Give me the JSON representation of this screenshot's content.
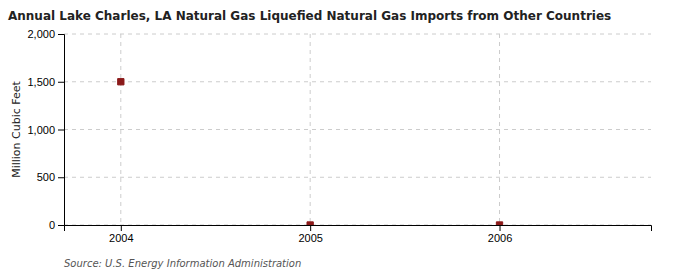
{
  "chart_data": {
    "type": "scatter",
    "title": "Annual Lake Charles, LA Natural Gas Liquefied Natural Gas Imports from Other Countries",
    "ylabel": "Million Cubic Feet",
    "annotations": [
      "Source: U.S. Energy Information Administration"
    ],
    "x": [
      2004,
      2005,
      2006
    ],
    "values": [
      1500,
      0,
      0
    ],
    "color": "#8B1A1A",
    "marker": "square",
    "xlim": [
      2003.7,
      2006.8
    ],
    "ylim": [
      0,
      2000
    ],
    "xticks": [
      2004,
      2005,
      2006
    ],
    "yticks": [
      0,
      500,
      {
        "value": 1000,
        "label": "1,000"
      },
      {
        "value": 1500,
        "label": "1,500"
      },
      {
        "value": 2000,
        "label": "2,000"
      }
    ],
    "grid": true
  }
}
